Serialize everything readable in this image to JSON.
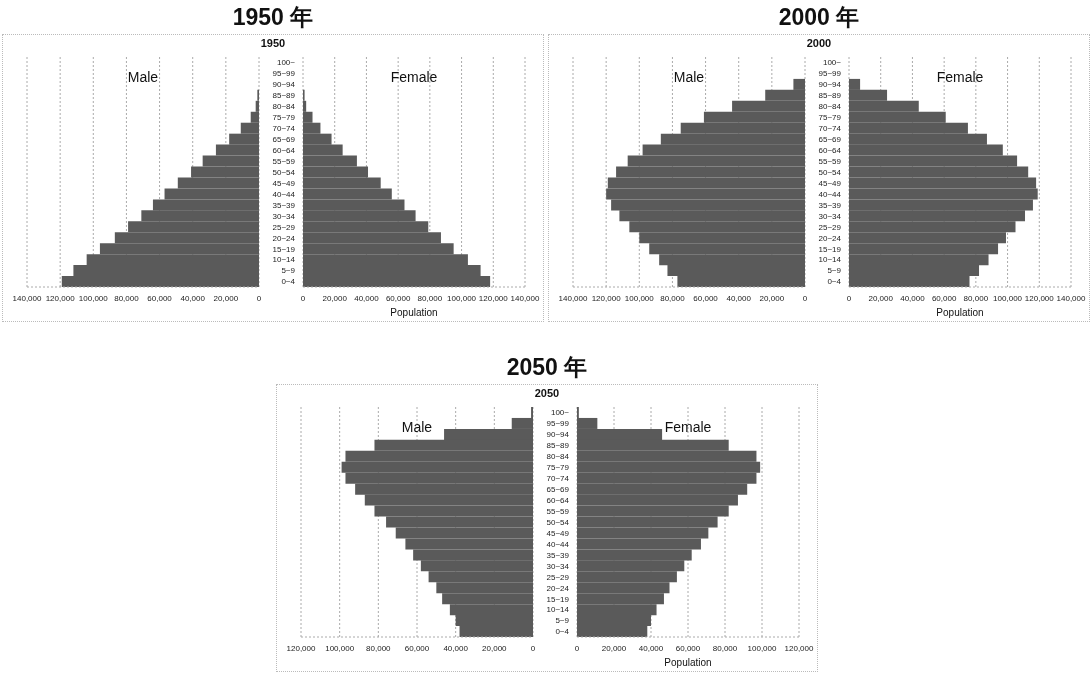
{
  "chart_data": [
    {
      "type": "bar",
      "orientation": "horizontal",
      "title": "1950 年",
      "subtitle": "1950",
      "categories": [
        null,
        null,
        null,
        null,
        null,
        null,
        null,
        null,
        null,
        null,
        null,
        null,
        null,
        null,
        null,
        null,
        null,
        null,
        null,
        null,
        null
      ],
      "series": [
        {
          "name": "Male",
          "color": "#5a5a5a",
          "values": [
            0,
            0,
            0,
            1000,
            2000,
            5000,
            11000,
            18000,
            26000,
            34000,
            41000,
            49000,
            57000,
            64000,
            71000,
            79000,
            87000,
            96000,
            104000,
            112000,
            119000
          ]
        }
      ],
      "xlim": [
        140000,
        0
      ],
      "xticks": [
        {
          "value": 140000,
          "label": "140,000"
        },
        {
          "value": 120000,
          "label": "120,000"
        },
        {
          "value": 100000,
          "label": "100,000"
        },
        {
          "value": 80000,
          "label": "80,000"
        },
        {
          "value": 60000,
          "label": "60,000"
        },
        {
          "value": 40000,
          "label": "40,000"
        },
        {
          "value": 20000,
          "label": "20,000"
        },
        {
          "value": 0,
          "label": "0"
        }
      ],
      "grid": "x",
      "tick_labels": "x"
    },
    {
      "type": "bar",
      "orientation": "horizontal",
      "xlabel": "Population",
      "categories": [
        "100~",
        "95~99",
        "90~94",
        "85~89",
        "80~84",
        "75~79",
        "70~74",
        "65~69",
        "60~64",
        "55~59",
        "50~54",
        "45~49",
        "40~44",
        "35~39",
        "30~34",
        "25~29",
        "20~24",
        "15~19",
        "10~14",
        "5~9",
        "0~4"
      ],
      "series": [
        {
          "name": "Female",
          "color": "#5a5a5a",
          "values": [
            0,
            0,
            0,
            1000,
            2000,
            6000,
            11000,
            18000,
            25000,
            34000,
            41000,
            49000,
            56000,
            64000,
            71000,
            79000,
            87000,
            95000,
            104000,
            112000,
            118000
          ]
        }
      ],
      "xlim": [
        0,
        140000
      ],
      "xticks": [
        {
          "value": 0,
          "label": "0"
        },
        {
          "value": 20000,
          "label": "20,000"
        },
        {
          "value": 40000,
          "label": "40,000"
        },
        {
          "value": 60000,
          "label": "60,000"
        },
        {
          "value": 80000,
          "label": "80,000"
        },
        {
          "value": 100000,
          "label": "100,000"
        },
        {
          "value": 120000,
          "label": "120,000"
        },
        {
          "value": 140000,
          "label": "140,000"
        }
      ],
      "grid": "x"
    },
    {
      "type": "bar",
      "orientation": "horizontal",
      "title": "2000 年",
      "subtitle": "2000",
      "categories": [
        null,
        null,
        null,
        null,
        null,
        null,
        null,
        null,
        null,
        null,
        null,
        null,
        null,
        null,
        null,
        null,
        null,
        null,
        null,
        null,
        null
      ],
      "series": [
        {
          "name": "Male",
          "color": "#5a5a5a",
          "values": [
            0,
            0,
            7000,
            24000,
            44000,
            61000,
            75000,
            87000,
            98000,
            107000,
            114000,
            119000,
            120000,
            117000,
            112000,
            106000,
            100000,
            94000,
            88000,
            83000,
            77000
          ]
        }
      ],
      "xlim": [
        140000,
        0
      ],
      "xticks": [
        {
          "value": 140000,
          "label": "140,000"
        },
        {
          "value": 120000,
          "label": "120,000"
        },
        {
          "value": 100000,
          "label": "100,000"
        },
        {
          "value": 80000,
          "label": "80,000"
        },
        {
          "value": 60000,
          "label": "60,000"
        },
        {
          "value": 40000,
          "label": "40,000"
        },
        {
          "value": 20000,
          "label": "20,000"
        },
        {
          "value": 0,
          "label": "0"
        }
      ],
      "grid": "x",
      "tick_labels": "x"
    },
    {
      "type": "bar",
      "orientation": "horizontal",
      "xlabel": "Population",
      "categories": [
        "100~",
        "95~99",
        "90~94",
        "85~89",
        "80~84",
        "75~79",
        "70~74",
        "65~69",
        "60~64",
        "55~59",
        "50~54",
        "45~49",
        "40~44",
        "35~39",
        "30~34",
        "25~29",
        "20~24",
        "15~19",
        "10~14",
        "5~9",
        "0~4"
      ],
      "series": [
        {
          "name": "Female",
          "color": "#5a5a5a",
          "values": [
            0,
            0,
            7000,
            24000,
            44000,
            61000,
            75000,
            87000,
            97000,
            106000,
            113000,
            118000,
            119000,
            116000,
            111000,
            105000,
            99000,
            94000,
            88000,
            82000,
            76000
          ]
        }
      ],
      "xlim": [
        0,
        140000
      ],
      "xticks": [
        {
          "value": 0,
          "label": "0"
        },
        {
          "value": 20000,
          "label": "20,000"
        },
        {
          "value": 40000,
          "label": "40,000"
        },
        {
          "value": 60000,
          "label": "60,000"
        },
        {
          "value": 80000,
          "label": "80,000"
        },
        {
          "value": 100000,
          "label": "100,000"
        },
        {
          "value": 120000,
          "label": "120,000"
        },
        {
          "value": 140000,
          "label": "140,000"
        }
      ],
      "grid": "x"
    },
    {
      "type": "bar",
      "orientation": "horizontal",
      "title": "2050 年",
      "subtitle": "2050",
      "categories": [
        null,
        null,
        null,
        null,
        null,
        null,
        null,
        null,
        null,
        null,
        null,
        null,
        null,
        null,
        null,
        null,
        null,
        null,
        null,
        null,
        null
      ],
      "series": [
        {
          "name": "Male",
          "color": "#5a5a5a",
          "values": [
            1000,
            11000,
            46000,
            82000,
            97000,
            99000,
            97000,
            92000,
            87000,
            82000,
            76000,
            71000,
            66000,
            62000,
            58000,
            54000,
            50000,
            47000,
            43000,
            40000,
            38000
          ]
        }
      ],
      "xlim": [
        120000,
        0
      ],
      "xticks": [
        {
          "value": 120000,
          "label": "120,000"
        },
        {
          "value": 100000,
          "label": "100,000"
        },
        {
          "value": 80000,
          "label": "80,000"
        },
        {
          "value": 60000,
          "label": "60,000"
        },
        {
          "value": 40000,
          "label": "40,000"
        },
        {
          "value": 20000,
          "label": "20,000"
        },
        {
          "value": 0,
          "label": "0"
        }
      ],
      "grid": "x",
      "tick_labels": "x"
    },
    {
      "type": "bar",
      "orientation": "horizontal",
      "xlabel": "Population",
      "categories": [
        "100~",
        "95~99",
        "90~94",
        "85~89",
        "80~84",
        "75~79",
        "70~74",
        "65~69",
        "60~64",
        "55~59",
        "50~54",
        "45~49",
        "40~44",
        "35~39",
        "30~34",
        "25~29",
        "20~24",
        "15~19",
        "10~14",
        "5~9",
        "0~4"
      ],
      "series": [
        {
          "name": "Female",
          "color": "#5a5a5a",
          "values": [
            1000,
            11000,
            46000,
            82000,
            97000,
            99000,
            97000,
            92000,
            87000,
            82000,
            76000,
            71000,
            67000,
            62000,
            58000,
            54000,
            50000,
            47000,
            43000,
            40000,
            38000
          ]
        }
      ],
      "xlim": [
        0,
        120000
      ],
      "xticks": [
        {
          "value": 0,
          "label": "0"
        },
        {
          "value": 20000,
          "label": "20,000"
        },
        {
          "value": 40000,
          "label": "40,000"
        },
        {
          "value": 60000,
          "label": "60,000"
        },
        {
          "value": 80000,
          "label": "80,000"
        },
        {
          "value": 100000,
          "label": "100,000"
        },
        {
          "value": 120000,
          "label": "120,000"
        }
      ],
      "grid": "x"
    }
  ]
}
